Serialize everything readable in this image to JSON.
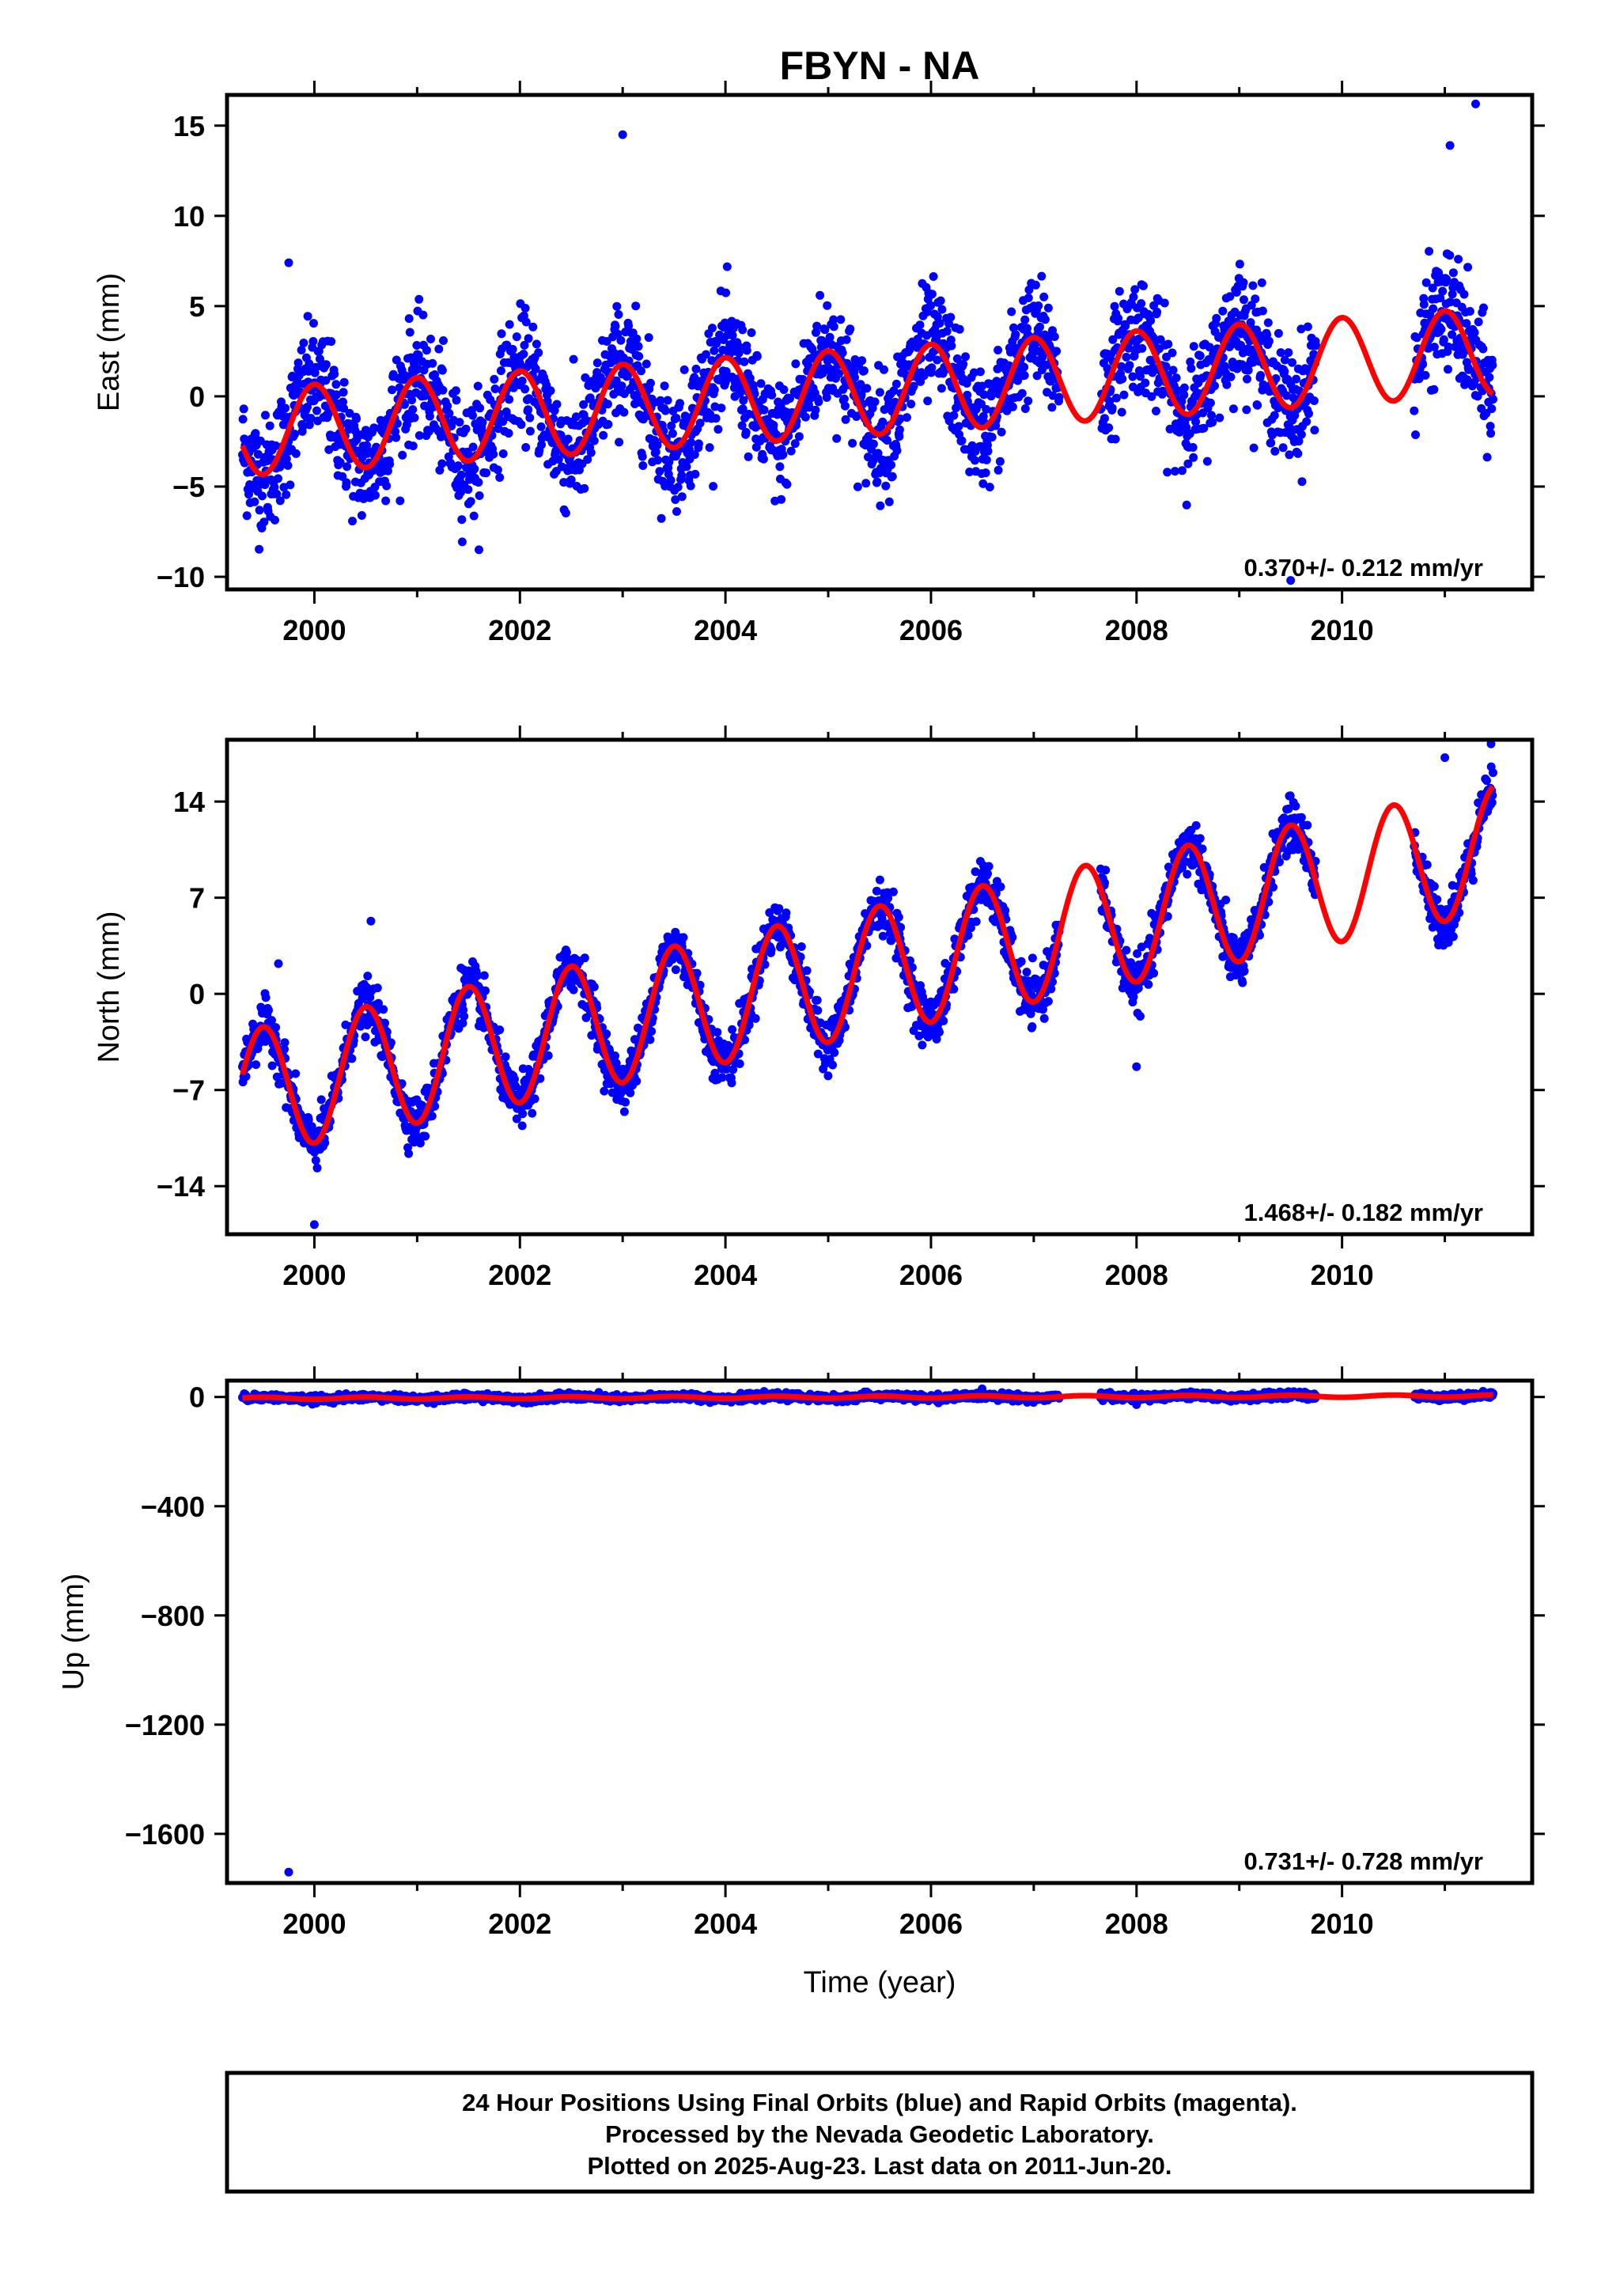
{
  "chart_data": {
    "title": "FBYN - NA",
    "xlabel": "Time (year)",
    "xlim": [
      1999.15,
      2011.85
    ],
    "x_ticks": [
      2000,
      2002,
      2004,
      2006,
      2008,
      2010
    ],
    "series_colors": {
      "data": "#0000ff",
      "model": "#ff0000"
    },
    "data_span": [
      1999.3,
      2011.47
    ],
    "gaps": [
      [
        2007.25,
        2007.65
      ],
      [
        2009.75,
        2010.7
      ]
    ],
    "panels": [
      {
        "type": "scatter",
        "ylabel": "East (mm)",
        "ylim": [
          -10.7,
          16.7
        ],
        "y_ticks": [
          15,
          10,
          5,
          0,
          -5,
          -10
        ],
        "rate_text": "0.370+/- 0.212 mm/yr",
        "model": {
          "offset": -2.0,
          "trend": 0.37,
          "amp": 2.4,
          "phase_peak": 0.0,
          "t0": 1999.3,
          "start": 1999.3,
          "end": 2011.47
        },
        "scatter_sigma": 1.6,
        "outliers": [
          [
            2003.0,
            14.5
          ],
          [
            1999.75,
            7.4
          ],
          [
            2011.3,
            16.2
          ],
          [
            2011.05,
            13.9
          ],
          [
            2009.5,
            -10.2
          ]
        ]
      },
      {
        "type": "scatter",
        "ylabel": "North (mm)",
        "ylim": [
          -17.5,
          18.5
        ],
        "y_ticks": [
          14,
          7,
          0,
          -7,
          -14
        ],
        "rate_text": "1.468+/- 0.182 mm/yr",
        "model": {
          "offset": -7.3,
          "trend": 1.468,
          "amp": 4.6,
          "phase_peak": 0.5,
          "t0": 1999.3,
          "start": 1999.3,
          "end": 2011.47
        },
        "scatter_sigma": 0.9,
        "outliers": [
          [
            2000.0,
            -16.8
          ],
          [
            2011.45,
            18.2
          ],
          [
            2011.0,
            17.2
          ],
          [
            1999.65,
            2.2
          ],
          [
            2000.55,
            5.3
          ],
          [
            2008.0,
            -5.3
          ]
        ]
      },
      {
        "type": "scatter",
        "ylabel": "Up (mm)",
        "ylim": [
          -1780,
          60
        ],
        "y_ticks": [
          0,
          -400,
          -800,
          -1200,
          -1600
        ],
        "rate_text": "0.731+/- 0.728 mm/yr",
        "model": {
          "offset": -5.0,
          "trend": 0.731,
          "amp": 4.0,
          "phase_peak": 0.5,
          "t0": 1999.3,
          "start": 1999.3,
          "end": 2011.47
        },
        "scatter_sigma": 6.0,
        "outliers": [
          [
            1999.75,
            -1740
          ],
          [
            2008.0,
            -28
          ]
        ]
      }
    ],
    "footnote": [
      "24 Hour Positions Using Final Orbits (blue) and Rapid Orbits (magenta).",
      "Processed by the Nevada Geodetic Laboratory.",
      "Plotted on 2025-Aug-23. Last data on 2011-Jun-20."
    ]
  }
}
